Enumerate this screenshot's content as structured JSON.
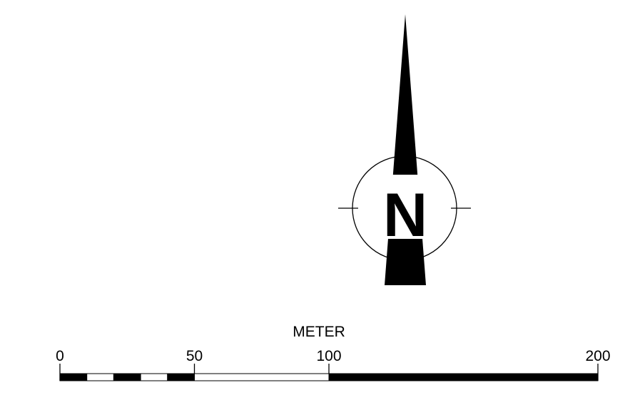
{
  "north_arrow": {
    "letter": "N",
    "icon": "north-arrow-icon"
  },
  "scale_bar": {
    "unit_label": "METER",
    "tick_labels": [
      "0",
      "50",
      "100",
      "200"
    ],
    "tick_values": [
      0,
      50,
      100,
      200
    ],
    "max_value": 200,
    "subdivisions_first_50": 5
  },
  "colors": {
    "ink": "#000000",
    "paper": "#ffffff"
  }
}
